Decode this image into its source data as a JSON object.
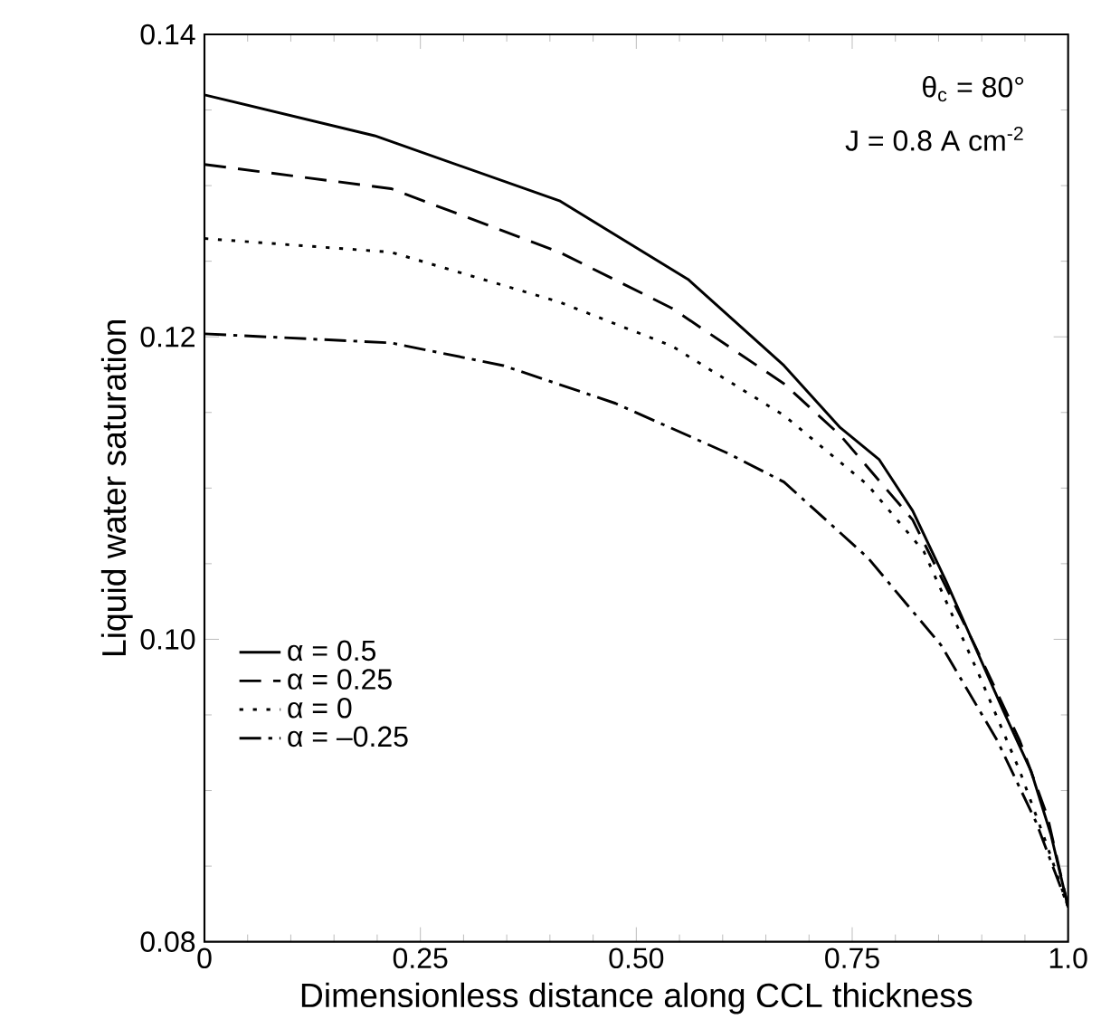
{
  "chart_data": {
    "type": "line",
    "xlabel": "Dimensionless distance along CCL thickness",
    "ylabel": "Liquid water saturation",
    "annotations": [
      "θ$_{c}$ = 80°",
      "J = 0.8 A cm$^{-2}$"
    ],
    "xlim": [
      0,
      1
    ],
    "ylim": [
      0.08,
      0.14
    ],
    "xticks": [
      0,
      0.25,
      {
        "value": 0.5,
        "label": "0.50"
      },
      0.75,
      {
        "value": 1,
        "label": "1.0"
      }
    ],
    "yticks": [
      {
        "value": 0.08,
        "label": "0.08"
      },
      {
        "value": 0.1,
        "label": "0.10"
      },
      {
        "value": 0.12,
        "label": "0.12"
      },
      {
        "value": 0.14,
        "label": "0.14"
      }
    ],
    "grid": false,
    "legend": "bottom left",
    "marker": "none",
    "series": [
      {
        "name": "α =  0.5",
        "color": "#000000",
        "line_style": "solid",
        "x": [
          0,
          0.197,
          0.411,
          0.56,
          0.671,
          0.736,
          0.781,
          0.82,
          0.859,
          0.924,
          0.957,
          0.98,
          1.0
        ],
        "values": [
          0.136,
          0.1333,
          0.129,
          0.1238,
          0.1181,
          0.114,
          0.1119,
          0.1085,
          0.1038,
          0.0954,
          0.0913,
          0.0871,
          0.0823
        ]
      },
      {
        "name": "α =  0.25",
        "color": "#000000",
        "line_style": "dashed",
        "x": [
          0,
          0.216,
          0.411,
          0.541,
          0.671,
          0.736,
          0.82,
          0.892,
          0.944,
          0.976,
          1.0
        ],
        "values": [
          0.1314,
          0.1298,
          0.1256,
          0.1219,
          0.1169,
          0.1135,
          0.1079,
          0.0996,
          0.0933,
          0.0883,
          0.0823
        ]
      },
      {
        "name": "α =  0",
        "color": "#000000",
        "line_style": "dotted",
        "x": [
          0,
          0.216,
          0.411,
          0.541,
          0.671,
          0.768,
          0.833,
          0.898,
          0.944,
          0.976,
          1.0
        ],
        "values": [
          0.1265,
          0.1256,
          0.1223,
          0.1194,
          0.1148,
          0.1102,
          0.1058,
          0.0975,
          0.0913,
          0.0863,
          0.0823
        ]
      },
      {
        "name": "α = –0.25",
        "color": "#000000",
        "line_style": "dashdot",
        "x": [
          0,
          0.216,
          0.346,
          0.476,
          0.606,
          0.671,
          0.768,
          0.853,
          0.918,
          0.963,
          1.0
        ],
        "values": [
          0.1202,
          0.1196,
          0.1181,
          0.1156,
          0.1123,
          0.1104,
          0.1054,
          0.0996,
          0.0933,
          0.0879,
          0.0823
        ]
      }
    ]
  }
}
